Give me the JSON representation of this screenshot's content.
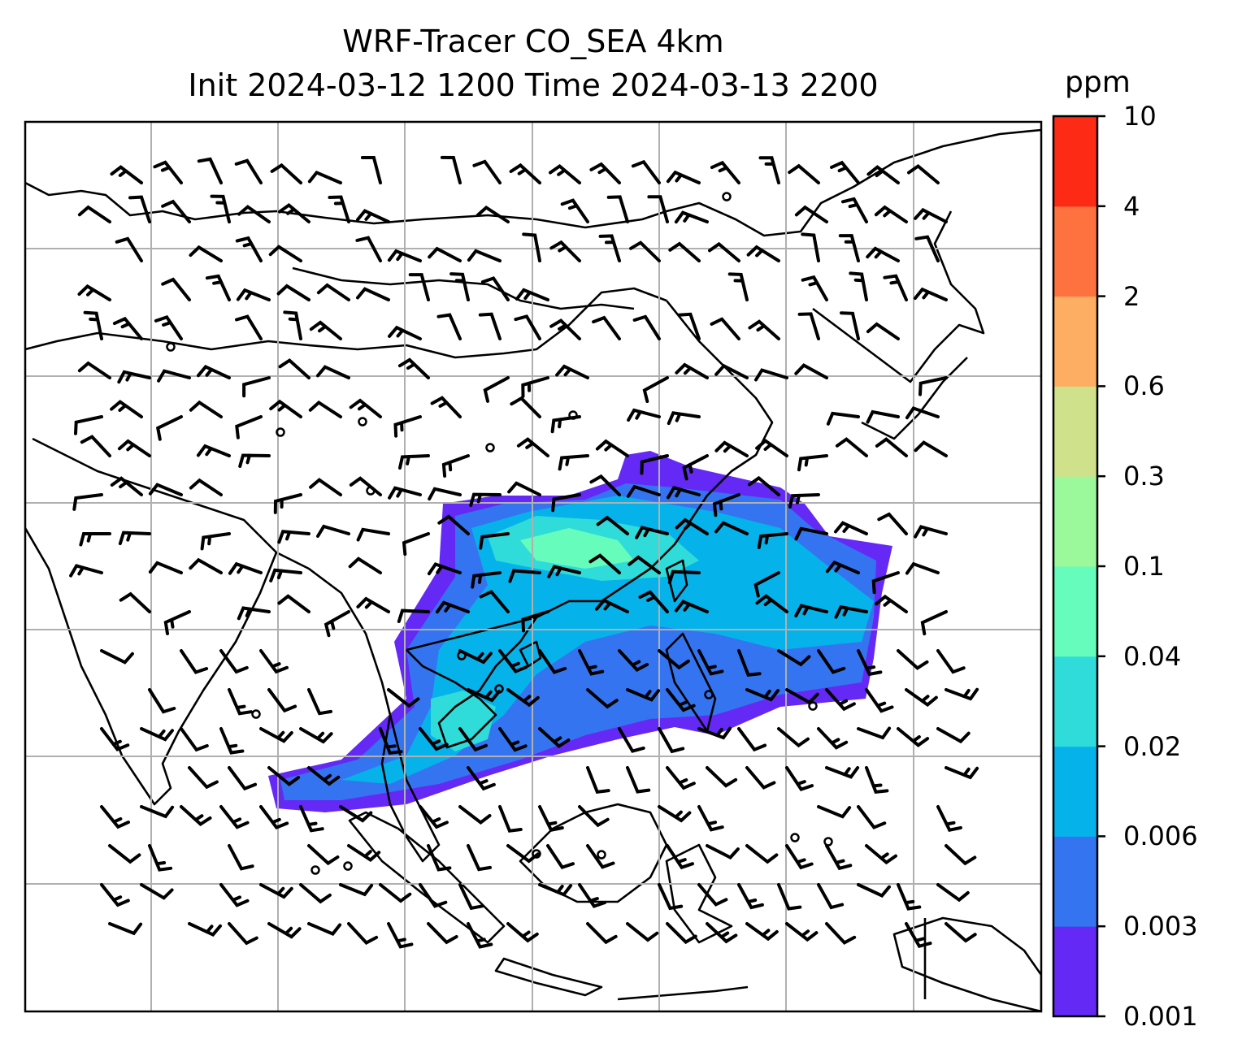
{
  "title_line1": "WRF-Tracer CO_SEA 4km",
  "title_line2": "Init 2024-03-12 1200 Time 2024-03-13 2200",
  "colorbar": {
    "unit": "ppm",
    "levels": [
      "0.001",
      "0.003",
      "0.006",
      "0.02",
      "0.04",
      "0.1",
      "0.3",
      "0.6",
      "2",
      "4",
      "10"
    ],
    "colors": [
      "#6429f5",
      "#3574f0",
      "#06b2ea",
      "#2fdcd9",
      "#66fcbc",
      "#9bf89b",
      "#cfe18a",
      "#fdae63",
      "#fe7240",
      "#fd2a16"
    ]
  },
  "map": {
    "land_color": "#ffffff",
    "coastline_color": "#000000",
    "gridline_color": "#b0b0b0",
    "plume_colors": [
      "#6429f5",
      "#3574f0",
      "#06b2ea",
      "#2fdcd9",
      "#66fcbc"
    ]
  }
}
